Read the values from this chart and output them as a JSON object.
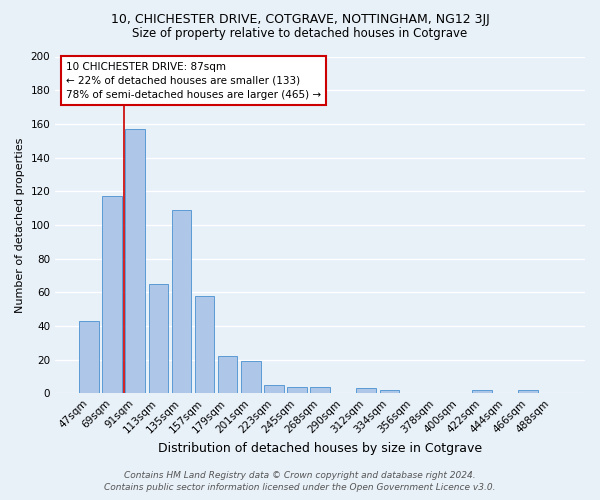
{
  "title": "10, CHICHESTER DRIVE, COTGRAVE, NOTTINGHAM, NG12 3JJ",
  "subtitle": "Size of property relative to detached houses in Cotgrave",
  "xlabel": "Distribution of detached houses by size in Cotgrave",
  "ylabel": "Number of detached properties",
  "categories": [
    "47sqm",
    "69sqm",
    "91sqm",
    "113sqm",
    "135sqm",
    "157sqm",
    "179sqm",
    "201sqm",
    "223sqm",
    "245sqm",
    "268sqm",
    "290sqm",
    "312sqm",
    "334sqm",
    "356sqm",
    "378sqm",
    "400sqm",
    "422sqm",
    "444sqm",
    "466sqm",
    "488sqm"
  ],
  "values": [
    43,
    117,
    157,
    65,
    109,
    58,
    22,
    19,
    5,
    4,
    4,
    0,
    3,
    2,
    0,
    0,
    0,
    2,
    0,
    2,
    0
  ],
  "bar_color": "#aec6e8",
  "bar_edge_color": "#5b9bd5",
  "background_color": "#e8f0f8",
  "grid_color": "#ffffff",
  "redline_color": "#cc0000",
  "annotation_text": "10 CHICHESTER DRIVE: 87sqm\n← 22% of detached houses are smaller (133)\n78% of semi-detached houses are larger (465) →",
  "annotation_box_color": "#ffffff",
  "annotation_box_edge": "#cc0000",
  "footer1": "Contains HM Land Registry data © Crown copyright and database right 2024.",
  "footer2": "Contains public sector information licensed under the Open Government Licence v3.0.",
  "ylim": [
    0,
    200
  ],
  "yticks": [
    0,
    20,
    40,
    60,
    80,
    100,
    120,
    140,
    160,
    180,
    200
  ],
  "title_fontsize": 9,
  "subtitle_fontsize": 8.5,
  "xlabel_fontsize": 9,
  "ylabel_fontsize": 8,
  "tick_fontsize": 7.5,
  "annotation_fontsize": 7.5,
  "footer_fontsize": 6.5
}
